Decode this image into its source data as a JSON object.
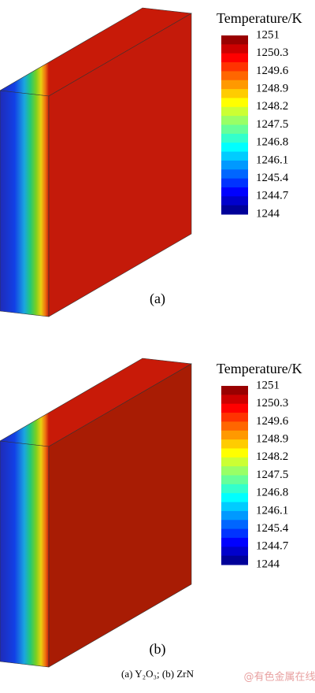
{
  "panels": [
    {
      "label": "(a)",
      "legend": {
        "title": "Temperature/K",
        "ticks": [
          1251,
          1250.3,
          1249.6,
          1248.9,
          1248.2,
          1247.5,
          1246.8,
          1246.1,
          1245.4,
          1244.7,
          1244
        ]
      }
    },
    {
      "label": "(b)",
      "legend": {
        "title": "Temperature/K",
        "ticks": [
          1251,
          1250.3,
          1249.6,
          1248.9,
          1248.2,
          1247.5,
          1246.8,
          1246.1,
          1245.4,
          1244.7,
          1244
        ]
      }
    }
  ],
  "caption": "(a) Y₂O₃; (b) ZrN",
  "watermark": "@有色金属在线"
}
